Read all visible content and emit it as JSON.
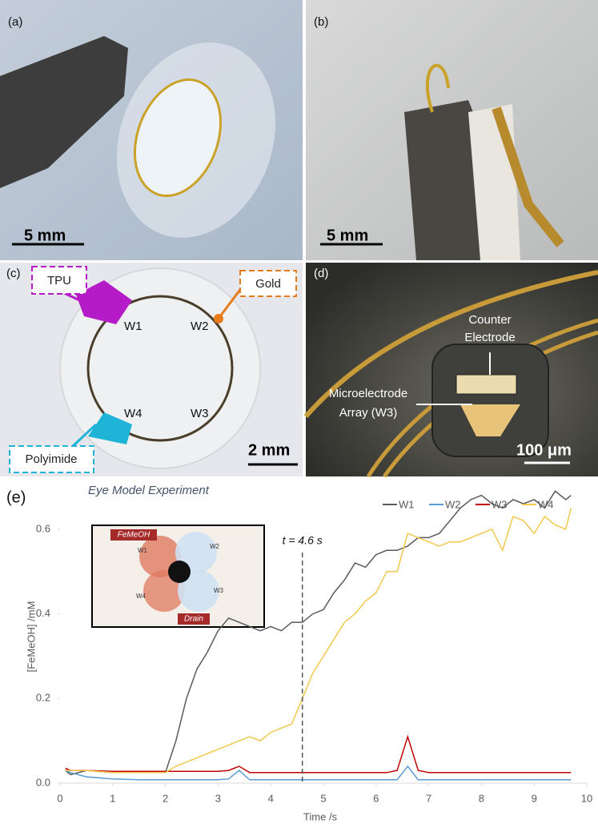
{
  "panels": [
    {
      "label": "(a)",
      "scale_bar": "5 mm"
    },
    {
      "label": "(b)",
      "scale_bar": "5 mm"
    },
    {
      "label": "(c)",
      "scale_bar": "2 mm",
      "callouts": [
        "TPU",
        "Gold",
        "Polyimide"
      ],
      "electrodes": [
        "W1",
        "W2",
        "W3",
        "W4"
      ]
    },
    {
      "label": "(d)",
      "scale_bar": "100 μm",
      "callouts": [
        [
          "Counter",
          "Electrode"
        ],
        [
          "Microelectrode",
          "Array (W3)"
        ]
      ]
    },
    {
      "label": "(e)",
      "inset": {
        "inlet": "FeMeOH",
        "outlet": "Drain",
        "electrodes": [
          "W1",
          "W2",
          "W3",
          "W4"
        ]
      }
    }
  ],
  "chart_data": {
    "type": "line",
    "title": "Eye Model Experiment",
    "x_label": "Time /s",
    "y_label": "[FeMeOH] /mM",
    "x": [
      0.1,
      0.2,
      0.5,
      1,
      1.5,
      2,
      2.2,
      2.4,
      2.6,
      2.8,
      3,
      3.2,
      3.4,
      3.6,
      3.8,
      4,
      4.2,
      4.4,
      4.6,
      4.8,
      5,
      5.2,
      5.4,
      5.6,
      5.8,
      6,
      6.2,
      6.4,
      6.6,
      6.8,
      7,
      7.2,
      7.4,
      7.6,
      7.8,
      8,
      8.2,
      8.4,
      8.6,
      8.8,
      9,
      9.2,
      9.4,
      9.6,
      9.7
    ],
    "series": [
      {
        "name": "W1",
        "color": "#595959",
        "values": [
          0.03,
          0.02,
          0.03,
          0.025,
          0.025,
          0.025,
          0.1,
          0.2,
          0.27,
          0.31,
          0.36,
          0.39,
          0.38,
          0.37,
          0.36,
          0.37,
          0.36,
          0.38,
          0.38,
          0.4,
          0.41,
          0.45,
          0.48,
          0.52,
          0.51,
          0.54,
          0.55,
          0.55,
          0.56,
          0.58,
          0.58,
          0.59,
          0.62,
          0.65,
          0.67,
          0.68,
          0.66,
          0.65,
          0.67,
          0.66,
          0.67,
          0.65,
          0.69,
          0.67,
          0.68
        ]
      },
      {
        "name": "W2",
        "color": "#5b9bd5",
        "values": [
          0.03,
          0.025,
          0.015,
          0.01,
          0.008,
          0.008,
          0.008,
          0.008,
          0.008,
          0.008,
          0.008,
          0.01,
          0.03,
          0.008,
          0.008,
          0.008,
          0.008,
          0.008,
          0.008,
          0.008,
          0.008,
          0.008,
          0.008,
          0.008,
          0.008,
          0.008,
          0.008,
          0.008,
          0.04,
          0.008,
          0.008,
          0.008,
          0.008,
          0.008,
          0.008,
          0.008,
          0.008,
          0.008,
          0.008,
          0.008,
          0.008,
          0.008,
          0.008,
          0.008,
          0.008
        ]
      },
      {
        "name": "W3",
        "color": "#c00000",
        "values": [
          0.035,
          0.03,
          0.03,
          0.028,
          0.028,
          0.028,
          0.028,
          0.028,
          0.028,
          0.028,
          0.028,
          0.03,
          0.04,
          0.025,
          0.025,
          0.025,
          0.025,
          0.025,
          0.025,
          0.025,
          0.025,
          0.025,
          0.025,
          0.025,
          0.025,
          0.025,
          0.025,
          0.03,
          0.11,
          0.03,
          0.025,
          0.025,
          0.025,
          0.025,
          0.025,
          0.025,
          0.025,
          0.025,
          0.025,
          0.025,
          0.025,
          0.025,
          0.025,
          0.025,
          0.025
        ]
      },
      {
        "name": "W4",
        "color": "#f2c94c",
        "values": [
          0.03,
          0.03,
          0.03,
          0.025,
          0.025,
          0.025,
          0.04,
          0.05,
          0.06,
          0.07,
          0.08,
          0.09,
          0.1,
          0.11,
          0.1,
          0.12,
          0.13,
          0.14,
          0.2,
          0.26,
          0.3,
          0.34,
          0.38,
          0.4,
          0.43,
          0.45,
          0.5,
          0.5,
          0.59,
          0.58,
          0.57,
          0.56,
          0.57,
          0.57,
          0.58,
          0.59,
          0.6,
          0.55,
          0.63,
          0.62,
          0.59,
          0.63,
          0.61,
          0.6,
          0.65
        ]
      }
    ],
    "xlim": [
      0,
      10
    ],
    "xticks": [
      0,
      1,
      2,
      3,
      4,
      5,
      6,
      7,
      8,
      9,
      10
    ],
    "ylim": [
      0,
      0.7
    ],
    "yticks": [
      {
        "value": 0,
        "label": "0.0"
      },
      0.2,
      0.4,
      0.6
    ],
    "annotation": {
      "text": "t = 4.6 s",
      "x": 4.6
    },
    "legend": "top"
  }
}
